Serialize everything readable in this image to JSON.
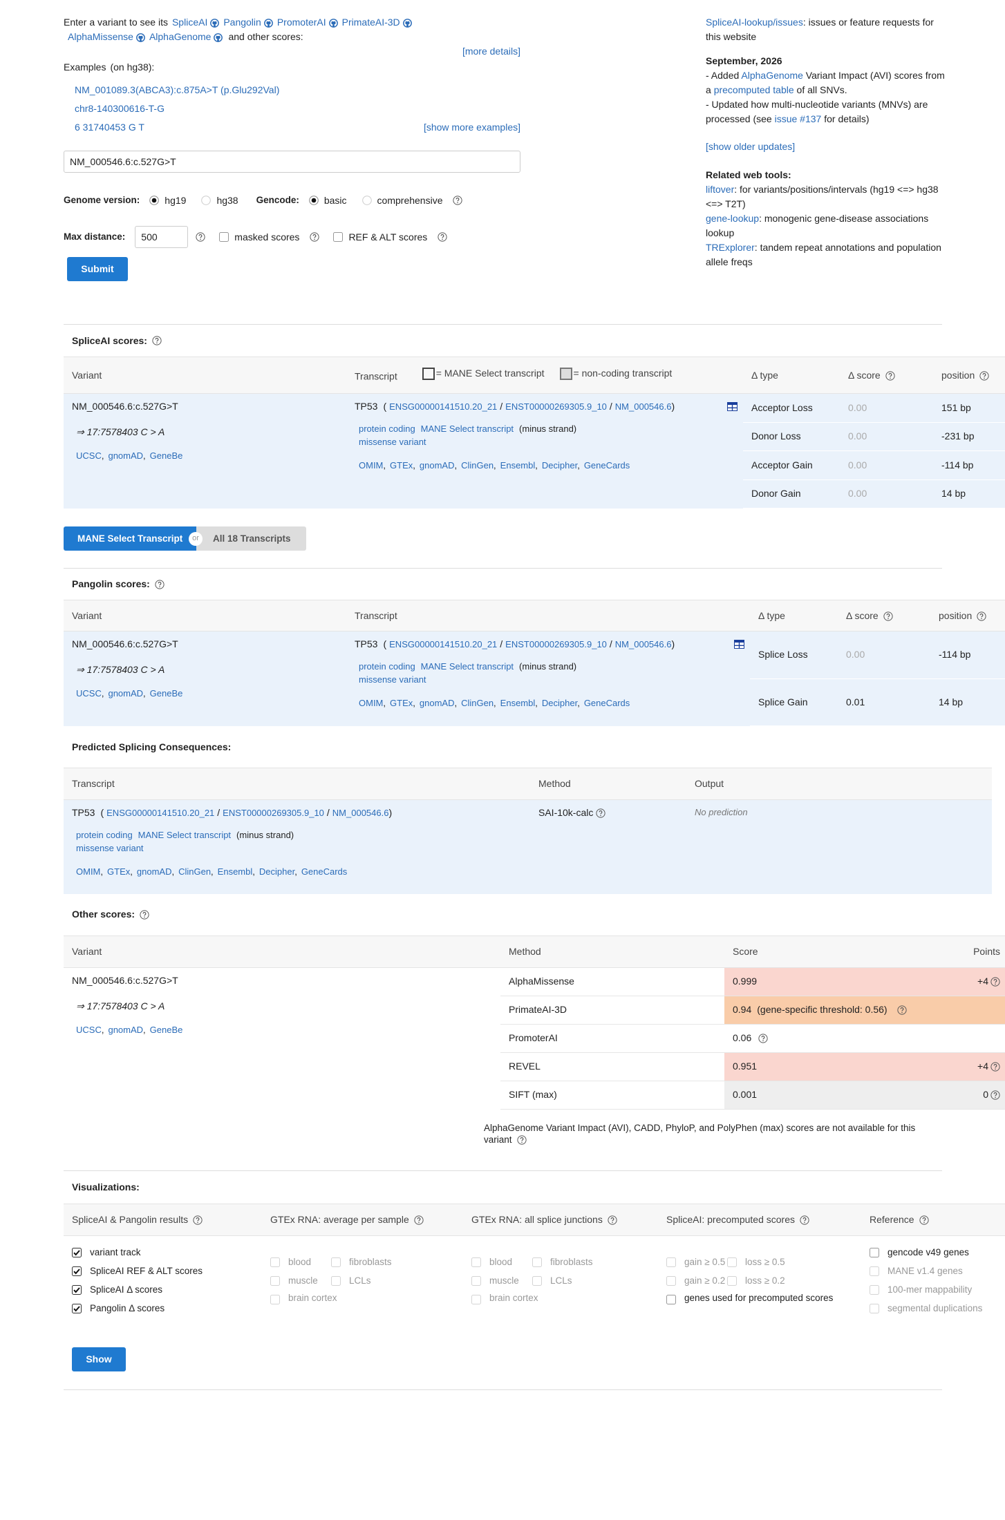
{
  "intro": {
    "lead": "Enter a variant to see its",
    "tools": [
      "SpliceAI",
      "Pangolin",
      "PromoterAI",
      "PrimateAI-3D",
      "AlphaMissense",
      "AlphaGenome"
    ],
    "tail": "and other scores:",
    "more_details": "[more details]"
  },
  "examples": {
    "label": "Examples",
    "note": "(on hg38):",
    "items": [
      "NM_001089.3(ABCA3):c.875A>T (p.Glu292Val)",
      "chr8-140300616-T-G",
      "6  31740453  G  T"
    ],
    "show_more": "[show more examples]"
  },
  "form": {
    "variant_input": "NM_000546.6:c.527G>T",
    "genome_label": "Genome version:",
    "genome_options": [
      {
        "label": "hg19",
        "checked": true
      },
      {
        "label": "hg38",
        "checked": false
      }
    ],
    "gencode_label": "Gencode:",
    "gencode_options": [
      {
        "label": "basic",
        "checked": true
      },
      {
        "label": "comprehensive",
        "checked": false
      }
    ],
    "max_distance_label": "Max distance:",
    "max_distance": "500",
    "flags": [
      {
        "label": "masked scores",
        "checked": false
      },
      {
        "label": "REF & ALT scores",
        "checked": false
      }
    ],
    "submit": "Submit"
  },
  "sidebar": {
    "issues": [
      {
        "link": "SpliceAI-lookup/issues"
      },
      {
        "text": ": issues or feature requests for this website"
      }
    ],
    "update_date": "September, 2026",
    "updates": [
      [
        {
          "text": "- Added "
        },
        {
          "link": "AlphaGenome"
        },
        {
          "text": " Variant Impact (AVI) scores from a "
        },
        {
          "link": "precomputed table"
        },
        {
          "text": " of all SNVs."
        }
      ],
      [
        {
          "text": "- Updated how multi-nucleotide variants (MNVs) are processed (see "
        },
        {
          "link": "issue #137"
        },
        {
          "text": " for details)"
        }
      ]
    ],
    "show_older": "[show older updates]",
    "related_title": "Related web tools:",
    "related": [
      [
        {
          "link": "liftover"
        },
        {
          "text": ": for variants/positions/intervals (hg19 <=> hg38 <=> T2T)"
        }
      ],
      [
        {
          "link": "gene-lookup"
        },
        {
          "text": ": monogenic gene-disease associations lookup"
        }
      ],
      [
        {
          "link": "TRExplorer"
        },
        {
          "text": ": tandem repeat annotations and population allele freqs"
        }
      ]
    ]
  },
  "spliceai": {
    "title": "SpliceAI scores:",
    "headers": {
      "variant": "Variant",
      "transcript": "Transcript",
      "mane_legend": "= MANE Select transcript",
      "noncoding_legend": "= non-coding transcript",
      "type": "Δ type",
      "score": "Δ score",
      "position": "position"
    },
    "variant": {
      "name": "NM_000546.6:c.527G>T",
      "coords": "⇒ 17:7578403 C > A",
      "links": [
        "UCSC",
        "gnomAD",
        "GeneBe"
      ],
      "sep": ","
    },
    "transcript": {
      "gene": "TP53",
      "open": "(",
      "ids": [
        "ENSG00000141510.20_21",
        "ENST00000269305.9_10",
        "NM_000546.6"
      ],
      "id_sep": "/",
      "close": ")",
      "biotype": "protein coding",
      "mane": "MANE Select transcript",
      "strand": "(minus strand)",
      "consequence": "missense variant",
      "links": [
        "OMIM",
        "GTEx",
        "gnomAD",
        "ClinGen",
        "Ensembl",
        "Decipher",
        "GeneCards"
      ],
      "sep": ","
    },
    "rows": [
      {
        "type": "Acceptor Loss",
        "score": "0.00",
        "position": "151 bp"
      },
      {
        "type": "Donor Loss",
        "score": "0.00",
        "position": "-231 bp"
      },
      {
        "type": "Acceptor Gain",
        "score": "0.00",
        "position": "-114 bp"
      },
      {
        "type": "Donor Gain",
        "score": "0.00",
        "position": "14 bp"
      }
    ]
  },
  "toggle": {
    "mane": "MANE Select Transcript",
    "or": "or",
    "all": "All 18 Transcripts"
  },
  "pangolin": {
    "title": "Pangolin scores:",
    "headers": {
      "variant": "Variant",
      "transcript": "Transcript",
      "type": "Δ type",
      "score": "Δ score",
      "position": "position"
    },
    "variant": {
      "name": "NM_000546.6:c.527G>T",
      "coords": "⇒ 17:7578403 C > A",
      "links": [
        "UCSC",
        "gnomAD",
        "GeneBe"
      ],
      "sep": ","
    },
    "transcript": {
      "gene": "TP53",
      "open": "(",
      "ids": [
        "ENSG00000141510.20_21",
        "ENST00000269305.9_10",
        "NM_000546.6"
      ],
      "id_sep": "/",
      "close": ")",
      "biotype": "protein coding",
      "mane": "MANE Select transcript",
      "strand": "(minus strand)",
      "consequence": "missense variant",
      "links": [
        "OMIM",
        "GTEx",
        "gnomAD",
        "ClinGen",
        "Ensembl",
        "Decipher",
        "GeneCards"
      ],
      "sep": ","
    },
    "rows": [
      {
        "type": "Splice Loss",
        "score": "0.00",
        "position": "-114 bp"
      },
      {
        "type": "Splice Gain",
        "score": "0.01",
        "position": "14 bp"
      }
    ]
  },
  "predicted": {
    "title": "Predicted Splicing Consequences:",
    "headers": {
      "transcript": "Transcript",
      "method": "Method",
      "output": "Output"
    },
    "transcript": {
      "gene": "TP53",
      "open": "(",
      "ids": [
        "ENSG00000141510.20_21",
        "ENST00000269305.9_10",
        "NM_000546.6"
      ],
      "id_sep": "/",
      "close": ")",
      "biotype": "protein coding",
      "mane": "MANE Select transcript",
      "strand": "(minus strand)",
      "consequence": "missense variant",
      "links": [
        "OMIM",
        "GTEx",
        "gnomAD",
        "ClinGen",
        "Ensembl",
        "Decipher",
        "GeneCards"
      ],
      "sep": ","
    },
    "method": "SAI-10k-calc",
    "output": "No prediction"
  },
  "other": {
    "title": "Other scores:",
    "headers": {
      "variant": "Variant",
      "method": "Method",
      "score": "Score",
      "points": "Points"
    },
    "variant": {
      "name": "NM_000546.6:c.527G>T",
      "coords": "⇒ 17:7578403 C > A",
      "links": [
        "UCSC",
        "gnomAD",
        "GeneBe"
      ],
      "sep": ","
    },
    "rows": [
      {
        "method": "AlphaMissense",
        "score": "0.999",
        "points": "+4",
        "color": "#fad6cf"
      },
      {
        "method": "PrimateAI-3D",
        "score": "0.94",
        "note": "(gene-specific threshold: 0.56)",
        "color": "#f9cca9"
      },
      {
        "method": "PromoterAI",
        "score": "0.06"
      },
      {
        "method": "REVEL",
        "score": "0.951",
        "points": "+4",
        "color": "#fad6cf"
      },
      {
        "method": "SIFT (max)",
        "score": "0.001",
        "points": "0",
        "color": "#eeeeee"
      }
    ],
    "note": "AlphaGenome Variant Impact (AVI), CADD, PhyloP, and PolyPhen (max) scores are not available for this variant"
  },
  "visualizations": {
    "title": "Visualizations:",
    "columns": [
      {
        "header": "SpliceAI & Pangolin results",
        "items": [
          {
            "label": "variant track",
            "checked": true,
            "disabled": false
          },
          {
            "label": "SpliceAI REF & ALT scores",
            "checked": true,
            "disabled": false
          },
          {
            "label": "SpliceAI Δ scores",
            "checked": true,
            "disabled": false
          },
          {
            "label": "Pangolin Δ scores",
            "checked": true,
            "disabled": false
          }
        ]
      },
      {
        "header": "GTEx RNA: average per sample",
        "items": [
          {
            "label": "blood",
            "checked": false,
            "disabled": true
          },
          {
            "label": "fibroblasts",
            "checked": false,
            "disabled": true
          },
          {
            "label": "muscle",
            "checked": false,
            "disabled": true
          },
          {
            "label": "LCLs",
            "checked": false,
            "disabled": true
          },
          {
            "label": "brain cortex",
            "checked": false,
            "disabled": true
          }
        ]
      },
      {
        "header": "GTEx RNA: all splice junctions",
        "items": [
          {
            "label": "blood",
            "checked": false,
            "disabled": true
          },
          {
            "label": "fibroblasts",
            "checked": false,
            "disabled": true
          },
          {
            "label": "muscle",
            "checked": false,
            "disabled": true
          },
          {
            "label": "LCLs",
            "checked": false,
            "disabled": true
          },
          {
            "label": "brain cortex",
            "checked": false,
            "disabled": true
          }
        ]
      },
      {
        "header": "SpliceAI: precomputed scores",
        "items": [
          {
            "label": "gain ≥ 0.5",
            "checked": false,
            "disabled": true
          },
          {
            "label": "loss ≥ 0.5",
            "checked": false,
            "disabled": true
          },
          {
            "label": "gain ≥ 0.2",
            "checked": false,
            "disabled": true
          },
          {
            "label": "loss ≥ 0.2",
            "checked": false,
            "disabled": true
          },
          {
            "label": "genes used for precomputed scores",
            "checked": false,
            "disabled": false
          }
        ]
      },
      {
        "header": "Reference",
        "items": [
          {
            "label": "gencode v49 genes",
            "checked": false,
            "disabled": false
          },
          {
            "label": "MANE v1.4 genes",
            "checked": false,
            "disabled": true
          },
          {
            "label": "100-mer mappability",
            "checked": false,
            "disabled": true
          },
          {
            "label": "segmental duplications",
            "checked": false,
            "disabled": true
          }
        ]
      }
    ],
    "show": "Show"
  }
}
